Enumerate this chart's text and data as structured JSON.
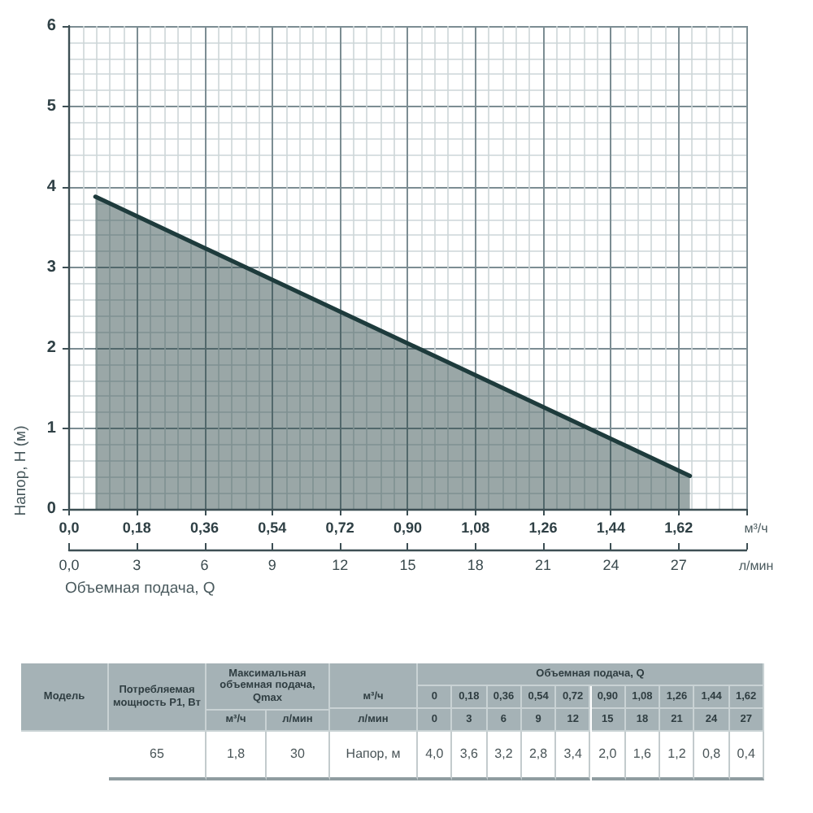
{
  "chart_data": {
    "type": "area",
    "xlabel": "м³/ч",
    "x2label": "л/мин",
    "ylabel": "Напор, H (м)",
    "annotations": [
      "Объемная подача, Q",
      "Модель",
      "Потребляемая мощность P1, Вт",
      "Максимальная объемная подача, Qmax",
      "м³/ч",
      "Объемная подача, Q",
      "0",
      "0,18",
      "0,36",
      "0,54",
      "0,72",
      "0,90",
      "1,08",
      "1,26",
      "1,44",
      "1,62",
      "м³/ч",
      "л/мин",
      "л/мин",
      "0",
      "3",
      "6",
      "9",
      "12",
      "15",
      "18",
      "21",
      "24",
      "27",
      "65",
      "1,8",
      "30",
      "Напор, м",
      "4,0",
      "3,6",
      "3,2",
      "2,8",
      "3,4",
      "2,0",
      "1,6",
      "1,2",
      "0,8",
      "0,4"
    ],
    "x": [
      0.07,
      1.65
    ],
    "values": [
      3.88,
      0.41
    ],
    "color": "#1e3b3c",
    "marker": "none",
    "line_style": "solid",
    "grid": true,
    "xlim": [
      0,
      1.8
    ],
    "xticks": [
      {
        "value": 0,
        "label": "0,0"
      },
      {
        "value": 0.18,
        "label": "0,18"
      },
      {
        "value": 0.36,
        "label": "0,36"
      },
      {
        "value": 0.54,
        "label": "0,54"
      },
      {
        "value": 0.72,
        "label": "0,72"
      },
      {
        "value": 0.9,
        "label": "0,90"
      },
      {
        "value": 1.08,
        "label": "1,08"
      },
      {
        "value": 1.26,
        "label": "1,26"
      },
      {
        "value": 1.44,
        "label": "1,44"
      },
      {
        "value": 1.62,
        "label": "1,62"
      },
      {
        "value": 1.8,
        "label": null
      }
    ],
    "x2lim": [
      0,
      30
    ],
    "x2ticks": [
      {
        "value": 0,
        "label": "0,0"
      },
      3,
      6,
      9,
      12,
      15,
      18,
      21,
      24,
      27,
      {
        "value": 30,
        "label": null
      }
    ],
    "ylim": [
      0,
      6
    ],
    "yticks": [
      0,
      1,
      2,
      3,
      4,
      5,
      6
    ]
  }
}
